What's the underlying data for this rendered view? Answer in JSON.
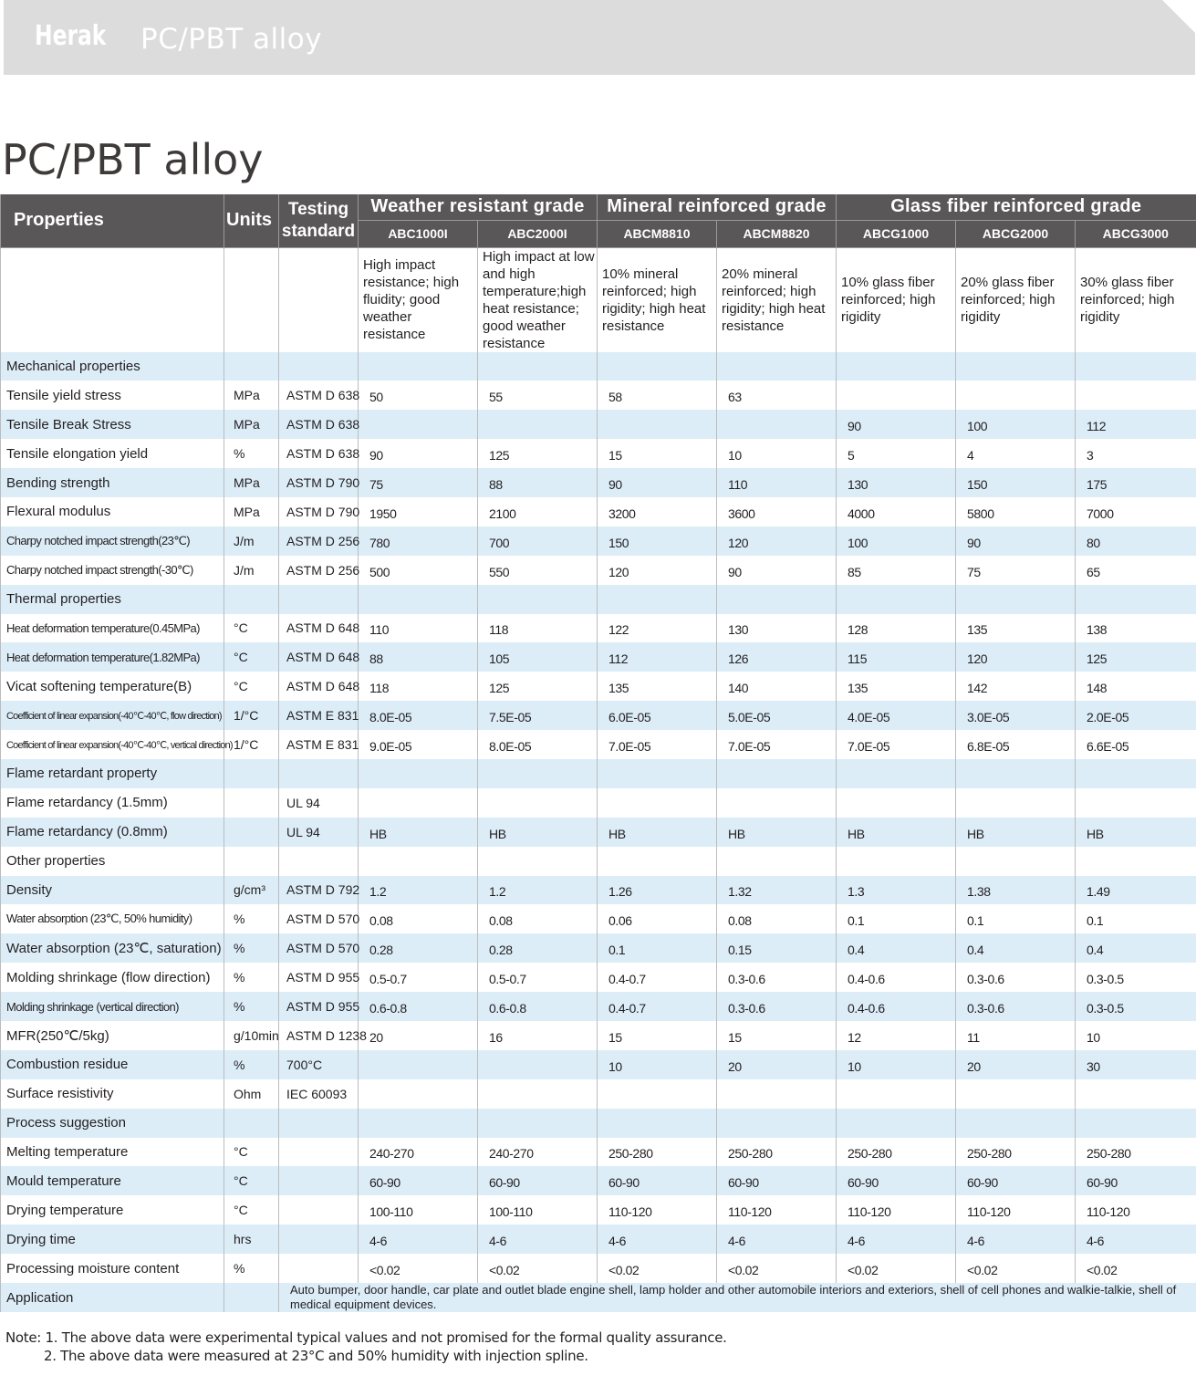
{
  "banner": {
    "brand": "Herak",
    "title": "PC/PBT alloy"
  },
  "page_title": "PC/PBT alloy",
  "table": {
    "headers": {
      "properties": "Properties",
      "units": "Units",
      "standard_line1": "Testing",
      "standard_line2": "standard"
    },
    "groups": [
      "Weather resistant grade",
      "Mineral reinforced grade",
      "Glass fiber reinforced grade"
    ],
    "grades": [
      "ABC1000I",
      "ABC2000I",
      "ABCM8810",
      "ABCM8820",
      "ABCG1000",
      "ABCG2000",
      "ABCG3000"
    ],
    "descriptions": [
      "High impact resistance; high fluidity; good weather resistance",
      "High impact at low and high temperature;high heat resistance; good weather resistance",
      "10% mineral reinforced; high rigidity; high heat resistance",
      "20% mineral reinforced; high rigidity; high heat resistance",
      "10% glass fiber reinforced; high rigidity",
      "20% glass fiber reinforced; high rigidity",
      "30% glass fiber reinforced; high rigidity"
    ],
    "rows": [
      {
        "label": "Mechanical properties",
        "unit": "",
        "std": "",
        "values": [
          "",
          "",
          "",
          "",
          "",
          "",
          ""
        ]
      },
      {
        "label": "Tensile yield stress",
        "unit": "MPa",
        "std": "ASTM D 638",
        "values": [
          "50",
          "55",
          "58",
          "63",
          "",
          "",
          ""
        ]
      },
      {
        "label": "Tensile Break Stress",
        "unit": "MPa",
        "std": "ASTM D 638",
        "values": [
          "",
          "",
          "",
          "",
          "90",
          "100",
          "112"
        ]
      },
      {
        "label": "Tensile elongation yield",
        "unit": "%",
        "std": "ASTM D 638",
        "values": [
          "90",
          "125",
          "15",
          "10",
          "5",
          "4",
          "3"
        ]
      },
      {
        "label": "Bending strength",
        "unit": "MPa",
        "std": "ASTM D 790",
        "values": [
          "75",
          "88",
          "90",
          "110",
          "130",
          "150",
          "175"
        ]
      },
      {
        "label": "Flexural modulus",
        "unit": "MPa",
        "std": "ASTM D 790",
        "values": [
          "1950",
          "2100",
          "3200",
          "3600",
          "4000",
          "5800",
          "7000"
        ]
      },
      {
        "label": "Charpy notched impact strength(23℃)",
        "unit": "J/m",
        "std": "ASTM D 256",
        "values": [
          "780",
          "700",
          "150",
          "120",
          "100",
          "90",
          "80"
        ],
        "size": "sm"
      },
      {
        "label": "Charpy notched impact strength(-30℃)",
        "unit": "J/m",
        "std": "ASTM D 256",
        "values": [
          "500",
          "550",
          "120",
          "90",
          "85",
          "75",
          "65"
        ],
        "size": "sm"
      },
      {
        "label": "Thermal properties",
        "unit": "",
        "std": "",
        "values": [
          "",
          "",
          "",
          "",
          "",
          "",
          ""
        ]
      },
      {
        "label": "Heat deformation temperature(0.45MPa)",
        "unit": "°C",
        "std": "ASTM D 648",
        "values": [
          "110",
          "118",
          "122",
          "130",
          "128",
          "135",
          "138"
        ],
        "size": "sm"
      },
      {
        "label": "Heat deformation temperature(1.82MPa)",
        "unit": "°C",
        "std": "ASTM D 648",
        "values": [
          "88",
          "105",
          "112",
          "126",
          "115",
          "120",
          "125"
        ],
        "size": "sm"
      },
      {
        "label": "Vicat softening temperature(B)",
        "unit": "°C",
        "std": "ASTM D 648",
        "values": [
          "118",
          "125",
          "135",
          "140",
          "135",
          "142",
          "148"
        ]
      },
      {
        "label": "Coefficient of linear expansion(-40℃-40℃, flow direction)",
        "unit": "1/°C",
        "std": "ASTM E 831",
        "values": [
          "8.0E-05",
          "7.5E-05",
          "6.0E-05",
          "5.0E-05",
          "4.0E-05",
          "3.0E-05",
          "2.0E-05"
        ],
        "size": "xs"
      },
      {
        "label": "Coefficient of linear expansion(-40℃-40℃, vertical direction)",
        "unit": "1/°C",
        "std": "ASTM E 831",
        "values": [
          "9.0E-05",
          "8.0E-05",
          "7.0E-05",
          "7.0E-05",
          "7.0E-05",
          "6.8E-05",
          "6.6E-05"
        ],
        "size": "xs"
      },
      {
        "label": "Flame retardant property",
        "unit": "",
        "std": "",
        "values": [
          "",
          "",
          "",
          "",
          "",
          "",
          ""
        ]
      },
      {
        "label": "Flame retardancy (1.5mm)",
        "unit": "",
        "std": "UL 94",
        "values": [
          "",
          "",
          "",
          "",
          "",
          "",
          ""
        ]
      },
      {
        "label": "Flame retardancy (0.8mm)",
        "unit": "",
        "std": "UL 94",
        "values": [
          "HB",
          "HB",
          "HB",
          "HB",
          "HB",
          "HB",
          "HB"
        ]
      },
      {
        "label": "Other properties",
        "unit": "",
        "std": "",
        "values": [
          "",
          "",
          "",
          "",
          "",
          "",
          ""
        ]
      },
      {
        "label": "Density",
        "unit": "g/cm³",
        "std": "ASTM D 792",
        "values": [
          "1.2",
          "1.2",
          "1.26",
          "1.32",
          "1.3",
          "1.38",
          "1.49"
        ]
      },
      {
        "label": "Water absorption (23℃, 50% humidity)",
        "unit": "%",
        "std": "ASTM D 570",
        "values": [
          "0.08",
          "0.08",
          "0.06",
          "0.08",
          "0.1",
          "0.1",
          "0.1"
        ],
        "size": "sm"
      },
      {
        "label": "Water absorption (23℃, saturation)",
        "unit": "%",
        "std": "ASTM D 570",
        "values": [
          "0.28",
          "0.28",
          "0.1",
          "0.15",
          "0.4",
          "0.4",
          "0.4"
        ]
      },
      {
        "label": "Molding shrinkage (flow direction)",
        "unit": "%",
        "std": "ASTM D 955",
        "values": [
          "0.5-0.7",
          "0.5-0.7",
          "0.4-0.7",
          "0.3-0.6",
          "0.4-0.6",
          "0.3-0.6",
          "0.3-0.5"
        ]
      },
      {
        "label": "Molding shrinkage (vertical direction)",
        "unit": "%",
        "std": "ASTM D 955",
        "values": [
          "0.6-0.8",
          "0.6-0.8",
          "0.4-0.7",
          "0.3-0.6",
          "0.4-0.6",
          "0.3-0.6",
          "0.3-0.5"
        ],
        "size": "sm"
      },
      {
        "label": "MFR(250℃/5kg)",
        "unit": "g/10min",
        "std": "ASTM D 1238",
        "values": [
          "20",
          "16",
          "15",
          "15",
          "12",
          "11",
          "10"
        ]
      },
      {
        "label": "Combustion residue",
        "unit": "%",
        "std": "700°C",
        "values": [
          "",
          "",
          "10",
          "20",
          "10",
          "20",
          "30"
        ]
      },
      {
        "label": "Surface resistivity",
        "unit": "Ohm",
        "std": "IEC 60093",
        "values": [
          "",
          "",
          "",
          "",
          "",
          "",
          ""
        ]
      },
      {
        "label": "Process suggestion",
        "unit": "",
        "std": "",
        "values": [
          "",
          "",
          "",
          "",
          "",
          "",
          ""
        ]
      },
      {
        "label": "Melting temperature",
        "unit": "°C",
        "std": "",
        "values": [
          "240-270",
          "240-270",
          "250-280",
          "250-280",
          "250-280",
          "250-280",
          "250-280"
        ]
      },
      {
        "label": "Mould temperature",
        "unit": "°C",
        "std": "",
        "values": [
          "60-90",
          "60-90",
          "60-90",
          "60-90",
          "60-90",
          "60-90",
          "60-90"
        ]
      },
      {
        "label": "Drying temperature",
        "unit": "°C",
        "std": "",
        "values": [
          "100-110",
          "100-110",
          "110-120",
          "110-120",
          "110-120",
          "110-120",
          "110-120"
        ]
      },
      {
        "label": "Drying time",
        "unit": "hrs",
        "std": "",
        "values": [
          "4-6",
          "4-6",
          "4-6",
          "4-6",
          "4-6",
          "4-6",
          "4-6"
        ]
      },
      {
        "label": "Processing moisture content",
        "unit": "%",
        "std": "",
        "values": [
          "<0.02",
          "<0.02",
          "<0.02",
          "<0.02",
          "<0.02",
          "<0.02",
          "<0.02"
        ]
      }
    ],
    "application": {
      "label": "Application",
      "text": "Auto bumper, door handle, car plate and outlet blade engine shell, lamp holder and other automobile interiors and exteriors, shell of cell phones and walkie-talkie, shell of medical equipment devices."
    }
  },
  "notes": {
    "line1": "Note: 1. The above data were experimental typical values and not promised for the formal quality assurance.",
    "line2": "2. The above data were measured at 23°C and 50% humidity with injection spline."
  }
}
